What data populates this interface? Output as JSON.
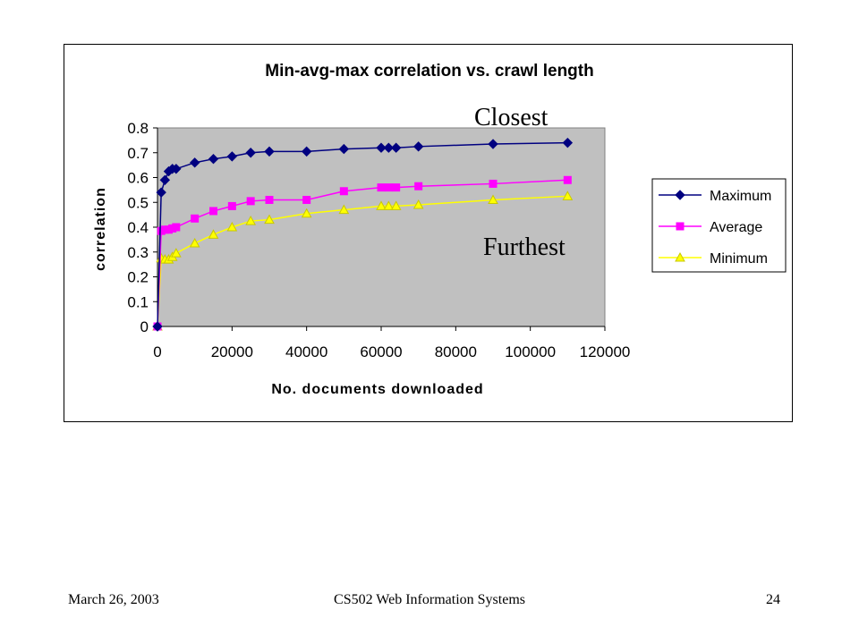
{
  "footer": {
    "date": "March 26, 2003",
    "course": "CS502 Web Information Systems",
    "page": "24"
  },
  "annotations": {
    "closest": "Closest",
    "furthest": "Furthest"
  },
  "colors": {
    "plot_background": "#c0c0c0",
    "maximum": "#000080",
    "average": "#ff00ff",
    "minimum": "#ffff00"
  },
  "chart_data": {
    "type": "line",
    "title": "Min-avg-max correlation vs. crawl length",
    "xlabel": "No. documents downloaded",
    "ylabel": "correlation",
    "xlim": [
      0,
      120000
    ],
    "ylim": [
      0,
      0.8
    ],
    "x_ticks": [
      "0",
      "20000",
      "40000",
      "60000",
      "80000",
      "100000",
      "120000"
    ],
    "y_ticks": [
      "0",
      "0.1",
      "0.2",
      "0.3",
      "0.4",
      "0.5",
      "0.6",
      "0.7",
      "0.8"
    ],
    "grid": false,
    "legend_position": "right",
    "series": [
      {
        "name": "Maximum",
        "marker": "diamond",
        "color": "#000080",
        "points": [
          [
            0,
            0
          ],
          [
            1000,
            0.54
          ],
          [
            2000,
            0.59
          ],
          [
            3000,
            0.625
          ],
          [
            4000,
            0.635
          ],
          [
            5000,
            0.635
          ],
          [
            10000,
            0.66
          ],
          [
            15000,
            0.675
          ],
          [
            20000,
            0.685
          ],
          [
            25000,
            0.7
          ],
          [
            30000,
            0.705
          ],
          [
            40000,
            0.705
          ],
          [
            50000,
            0.715
          ],
          [
            60000,
            0.72
          ],
          [
            62000,
            0.72
          ],
          [
            64000,
            0.72
          ],
          [
            70000,
            0.725
          ],
          [
            90000,
            0.735
          ],
          [
            110000,
            0.74
          ]
        ]
      },
      {
        "name": "Average",
        "marker": "square",
        "color": "#ff00ff",
        "points": [
          [
            0,
            0
          ],
          [
            1000,
            0.385
          ],
          [
            2000,
            0.39
          ],
          [
            3000,
            0.39
          ],
          [
            4000,
            0.395
          ],
          [
            5000,
            0.4
          ],
          [
            10000,
            0.435
          ],
          [
            15000,
            0.465
          ],
          [
            20000,
            0.485
          ],
          [
            25000,
            0.505
          ],
          [
            30000,
            0.51
          ],
          [
            40000,
            0.51
          ],
          [
            50000,
            0.545
          ],
          [
            60000,
            0.56
          ],
          [
            62000,
            0.56
          ],
          [
            64000,
            0.56
          ],
          [
            70000,
            0.565
          ],
          [
            90000,
            0.575
          ],
          [
            110000,
            0.59
          ]
        ]
      },
      {
        "name": "Minimum",
        "marker": "triangle",
        "color": "#ffff00",
        "points": [
          [
            0,
            0
          ],
          [
            1000,
            0.275
          ],
          [
            2000,
            0.27
          ],
          [
            3000,
            0.27
          ],
          [
            4000,
            0.28
          ],
          [
            5000,
            0.295
          ],
          [
            10000,
            0.335
          ],
          [
            15000,
            0.37
          ],
          [
            20000,
            0.4
          ],
          [
            25000,
            0.425
          ],
          [
            30000,
            0.43
          ],
          [
            40000,
            0.455
          ],
          [
            50000,
            0.47
          ],
          [
            60000,
            0.485
          ],
          [
            62000,
            0.485
          ],
          [
            64000,
            0.485
          ],
          [
            70000,
            0.49
          ],
          [
            90000,
            0.51
          ],
          [
            110000,
            0.525
          ]
        ]
      }
    ]
  }
}
